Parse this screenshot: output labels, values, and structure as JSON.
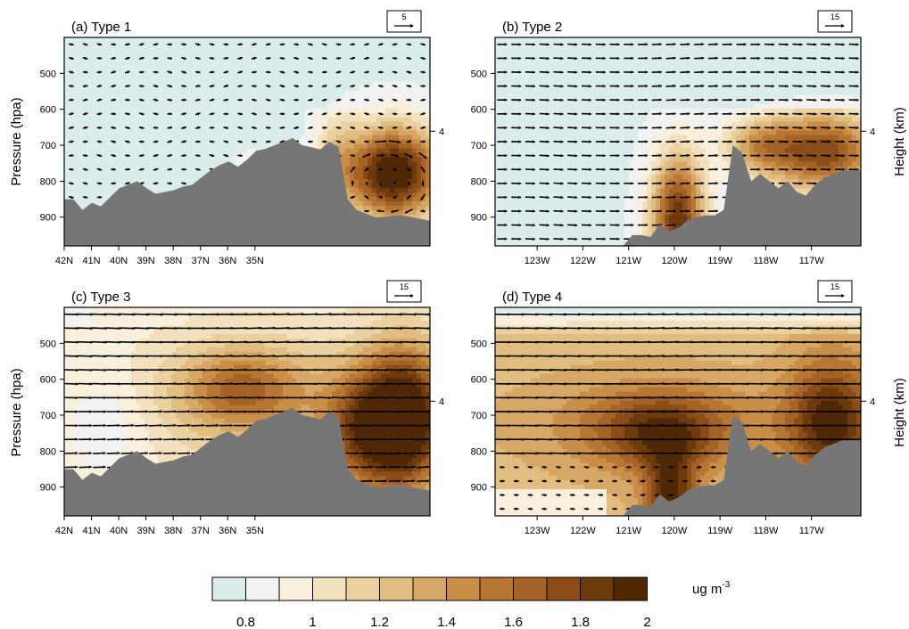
{
  "figure": {
    "left_axis_title": "Pressure (hpa)",
    "right_axis_title": "Height (km)",
    "right_tick": "4"
  },
  "chart_data": [
    {
      "type": "heatmap",
      "id": "a",
      "title": "(a) Type 1",
      "x_ticks": [
        "42N",
        "41N",
        "40N",
        "39N",
        "38N",
        "37N",
        "36N",
        "35N"
      ],
      "y_ticks": [
        "500",
        "600",
        "700",
        "800",
        "900"
      ],
      "y_unit": "hPa",
      "ylim": [
        980,
        400
      ],
      "height_tick_km": "4",
      "reference_vector": "5",
      "terrain_pressure_hpa": [
        850,
        850,
        880,
        860,
        870,
        845,
        820,
        810,
        800,
        820,
        835,
        830,
        825,
        815,
        810,
        790,
        770,
        755,
        745,
        760,
        740,
        715,
        710,
        700,
        690,
        680,
        700,
        705,
        712,
        690,
        705,
        850,
        880,
        890,
        900,
        900,
        895,
        895,
        900,
        905,
        910
      ],
      "concentration_pattern": "clean at most levels; dense dust plume 580–900 hPa between 36N and 34.5N",
      "wind_pattern": "weak variable winds with a closed circulation inside the southern plume"
    },
    {
      "type": "heatmap",
      "id": "b",
      "title": "(b) Type 2",
      "x_ticks": [
        "123W",
        "122W",
        "121W",
        "120W",
        "119W",
        "118W",
        "117W"
      ],
      "y_ticks": [
        "500",
        "600",
        "700",
        "800",
        "900"
      ],
      "y_unit": "hPa",
      "ylim": [
        980,
        400
      ],
      "height_tick_km": "4",
      "reference_vector": "15",
      "terrain_pressure_hpa": [
        980,
        980,
        980,
        980,
        980,
        980,
        980,
        980,
        980,
        980,
        980,
        980,
        980,
        980,
        980,
        950,
        950,
        955,
        920,
        940,
        930,
        910,
        900,
        895,
        895,
        880,
        700,
        720,
        800,
        780,
        800,
        820,
        800,
        830,
        840,
        810,
        790,
        780,
        770,
        770,
        770
      ],
      "concentration_pattern": "clean air west of 121W; dust column 620–980 hPa near 120W and plume 600–850 hPa east of 119W",
      "wind_pattern": "westerly flow increasing with height"
    },
    {
      "type": "heatmap",
      "id": "c",
      "title": "(c) Type 3",
      "x_ticks": [
        "42N",
        "41N",
        "40N",
        "39N",
        "38N",
        "37N",
        "36N",
        "35N"
      ],
      "y_ticks": [
        "500",
        "600",
        "700",
        "800",
        "900"
      ],
      "y_unit": "hPa",
      "ylim": [
        980,
        400
      ],
      "height_tick_km": "4",
      "reference_vector": "15",
      "terrain_pressure_hpa": [
        850,
        850,
        880,
        860,
        870,
        845,
        820,
        810,
        800,
        820,
        835,
        830,
        825,
        815,
        810,
        790,
        770,
        755,
        745,
        760,
        740,
        715,
        710,
        700,
        690,
        680,
        700,
        705,
        712,
        690,
        705,
        850,
        880,
        890,
        900,
        900,
        895,
        895,
        900,
        905,
        910
      ],
      "concentration_pattern": "moderate concentrations throughout; densest plume south of 36N from 480 to 900 hPa",
      "wind_pattern": "strong westerlies aloft"
    },
    {
      "type": "heatmap",
      "id": "d",
      "title": "(d) Type 4",
      "x_ticks": [
        "123W",
        "122W",
        "121W",
        "120W",
        "119W",
        "118W",
        "117W"
      ],
      "y_ticks": [
        "500",
        "600",
        "700",
        "800",
        "900"
      ],
      "y_unit": "hPa",
      "ylim": [
        980,
        400
      ],
      "height_tick_km": "4",
      "reference_vector": "15",
      "terrain_pressure_hpa": [
        980,
        980,
        980,
        980,
        980,
        980,
        980,
        980,
        980,
        980,
        980,
        980,
        980,
        980,
        980,
        950,
        950,
        955,
        920,
        940,
        930,
        910,
        900,
        895,
        895,
        880,
        700,
        720,
        800,
        780,
        800,
        820,
        800,
        830,
        840,
        810,
        790,
        780,
        770,
        770,
        770
      ],
      "concentration_pattern": "moderate-to-high concentrations below 450 hPa; densest east of 119W",
      "wind_pattern": "strong westerlies, weaker near the surface"
    }
  ],
  "colorbar": {
    "colors": [
      "#dbeced",
      "#f2f2f2",
      "#f8efdc",
      "#f3e1bd",
      "#ebd0a0",
      "#e2bd81",
      "#d7a865",
      "#c98f48",
      "#b87634",
      "#a46226",
      "#8b4d17",
      "#6e3a0c",
      "#502805"
    ],
    "labels": [
      "0.8",
      "1",
      "1.2",
      "1.4",
      "1.6",
      "1.8",
      "2"
    ],
    "unit": "ug m",
    "unit_exp": "-3"
  }
}
